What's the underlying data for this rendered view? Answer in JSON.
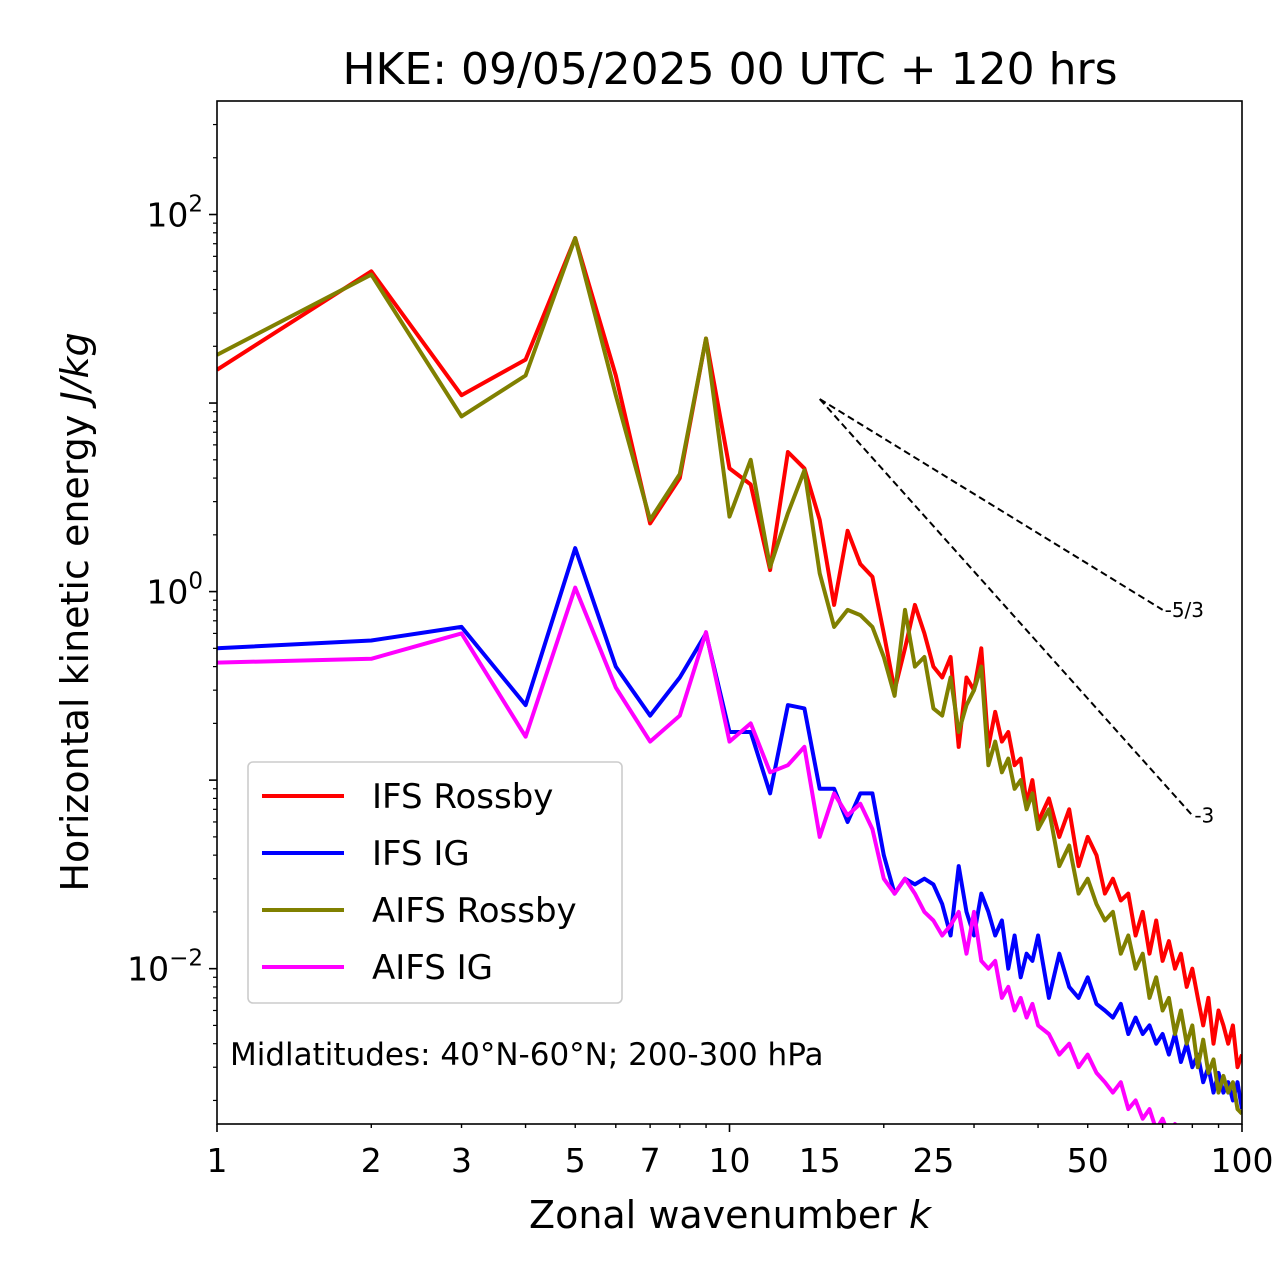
{
  "chart_data": {
    "type": "line",
    "title": "HKE: 09/05/2025 00 UTC + 120 hrs",
    "xlabel": "Zonal wavenumber ",
    "xlabel_italic": "k",
    "ylabel": "Horizontal kinetic energy ",
    "ylabel_italic": "J/kg",
    "xscale": "log",
    "yscale": "log",
    "xlim": [
      1,
      100
    ],
    "ylim": [
      0.0015,
      400
    ],
    "x_ticks": [
      1,
      2,
      3,
      5,
      7,
      10,
      15,
      25,
      50,
      100
    ],
    "x_tick_labels": [
      "1",
      "2",
      "3",
      "5",
      "7",
      "10",
      "15",
      "25",
      "50",
      "100"
    ],
    "y_ticks": [
      {
        "value": 100,
        "base": "10",
        "exp": "2"
      },
      {
        "value": 1,
        "base": "10",
        "exp": "0"
      },
      {
        "value": 0.01,
        "base": "10",
        "exp": "−2"
      }
    ],
    "legend_position": "lower-left",
    "annotation": "Midlatitudes: 40°N-60°N; 200-300 hPa",
    "reference_lines": [
      {
        "label": "-5/3",
        "slope": -1.6667,
        "x": [
          15,
          70
        ],
        "y": [
          10.5,
          0.8
        ]
      },
      {
        "label": "-3",
        "slope": -3,
        "x": [
          15,
          80
        ],
        "y": [
          10.5,
          0.065
        ]
      }
    ],
    "series": [
      {
        "name": "IFS Rossby",
        "color": "#ff0000",
        "x": [
          1,
          2,
          3,
          4,
          5,
          6,
          7,
          8,
          9,
          10,
          11,
          12,
          13,
          14,
          15,
          16,
          17,
          18,
          19,
          20,
          21,
          22,
          23,
          24,
          25,
          26,
          27,
          28,
          29,
          30,
          31,
          32,
          33,
          34,
          35,
          36,
          37,
          38,
          39,
          40,
          42,
          44,
          46,
          48,
          50,
          52,
          54,
          56,
          58,
          60,
          62,
          64,
          66,
          68,
          70,
          72,
          74,
          76,
          78,
          80,
          82,
          84,
          86,
          88,
          90,
          92,
          94,
          96,
          98,
          100
        ],
        "y": [
          15,
          50,
          11,
          17,
          75,
          14,
          2.3,
          4,
          22,
          4.5,
          3.7,
          1.3,
          5.5,
          4.5,
          2.4,
          0.85,
          2.1,
          1.4,
          1.2,
          0.6,
          0.3,
          0.5,
          0.85,
          0.6,
          0.4,
          0.35,
          0.45,
          0.15,
          0.35,
          0.3,
          0.5,
          0.15,
          0.23,
          0.16,
          0.18,
          0.12,
          0.13,
          0.075,
          0.1,
          0.06,
          0.08,
          0.05,
          0.07,
          0.035,
          0.05,
          0.04,
          0.025,
          0.03,
          0.023,
          0.025,
          0.015,
          0.02,
          0.012,
          0.018,
          0.011,
          0.014,
          0.01,
          0.012,
          0.008,
          0.01,
          0.007,
          0.005,
          0.007,
          0.004,
          0.006,
          0.005,
          0.004,
          0.005,
          0.003,
          0.0035
        ]
      },
      {
        "name": "IFS IG",
        "color": "#0000ff",
        "x": [
          1,
          2,
          3,
          4,
          5,
          6,
          7,
          8,
          9,
          10,
          11,
          12,
          13,
          14,
          15,
          16,
          17,
          18,
          19,
          20,
          21,
          22,
          23,
          24,
          25,
          26,
          27,
          28,
          29,
          30,
          31,
          32,
          33,
          34,
          35,
          36,
          37,
          38,
          39,
          40,
          42,
          44,
          46,
          48,
          50,
          52,
          54,
          56,
          58,
          60,
          62,
          64,
          66,
          68,
          70,
          72,
          74,
          76,
          78,
          80,
          82,
          84,
          86,
          88,
          90,
          92,
          94,
          96,
          98,
          100
        ],
        "y": [
          0.5,
          0.55,
          0.65,
          0.25,
          1.7,
          0.4,
          0.22,
          0.35,
          0.6,
          0.18,
          0.18,
          0.085,
          0.25,
          0.24,
          0.09,
          0.09,
          0.06,
          0.085,
          0.085,
          0.04,
          0.025,
          0.03,
          0.028,
          0.03,
          0.028,
          0.022,
          0.015,
          0.035,
          0.02,
          0.015,
          0.025,
          0.02,
          0.015,
          0.018,
          0.01,
          0.015,
          0.009,
          0.012,
          0.011,
          0.015,
          0.007,
          0.012,
          0.008,
          0.007,
          0.009,
          0.0065,
          0.006,
          0.0055,
          0.0065,
          0.0045,
          0.0055,
          0.0045,
          0.005,
          0.004,
          0.0045,
          0.0035,
          0.0045,
          0.0032,
          0.004,
          0.003,
          0.0035,
          0.0025,
          0.003,
          0.0022,
          0.0028,
          0.0022,
          0.0025,
          0.002,
          0.0025,
          0.0018
        ]
      },
      {
        "name": "AIFS Rossby",
        "color": "#808000",
        "x": [
          1,
          2,
          3,
          4,
          5,
          6,
          7,
          8,
          9,
          10,
          11,
          12,
          13,
          14,
          15,
          16,
          17,
          18,
          19,
          20,
          21,
          22,
          23,
          24,
          25,
          26,
          27,
          28,
          29,
          30,
          31,
          32,
          33,
          34,
          35,
          36,
          37,
          38,
          39,
          40,
          42,
          44,
          46,
          48,
          50,
          52,
          54,
          56,
          58,
          60,
          62,
          64,
          66,
          68,
          70,
          72,
          74,
          76,
          78,
          80,
          82,
          84,
          86,
          88,
          90,
          92,
          94,
          96,
          98,
          100
        ],
        "y": [
          18,
          48,
          8.5,
          14,
          75,
          11,
          2.4,
          4.2,
          22,
          2.5,
          5,
          1.35,
          2.6,
          4.4,
          1.25,
          0.65,
          0.8,
          0.75,
          0.65,
          0.45,
          0.28,
          0.8,
          0.4,
          0.45,
          0.24,
          0.22,
          0.35,
          0.18,
          0.25,
          0.3,
          0.4,
          0.12,
          0.16,
          0.11,
          0.13,
          0.09,
          0.1,
          0.07,
          0.085,
          0.055,
          0.07,
          0.035,
          0.045,
          0.025,
          0.03,
          0.022,
          0.018,
          0.02,
          0.012,
          0.015,
          0.01,
          0.012,
          0.007,
          0.009,
          0.006,
          0.007,
          0.0045,
          0.006,
          0.004,
          0.005,
          0.003,
          0.0042,
          0.0028,
          0.0033,
          0.0022,
          0.0027,
          0.0022,
          0.0025,
          0.0018,
          0.0017
        ]
      },
      {
        "name": "AIFS IG",
        "color": "#ff00ff",
        "x": [
          1,
          2,
          3,
          4,
          5,
          6,
          7,
          8,
          9,
          10,
          11,
          12,
          13,
          14,
          15,
          16,
          17,
          18,
          19,
          20,
          21,
          22,
          23,
          24,
          25,
          26,
          27,
          28,
          29,
          30,
          31,
          32,
          33,
          34,
          35,
          36,
          37,
          38,
          39,
          40,
          42,
          44,
          46,
          48,
          50,
          52,
          54,
          56,
          58,
          60,
          62,
          64,
          66,
          68,
          70,
          72,
          74,
          76,
          78
        ],
        "y": [
          0.42,
          0.44,
          0.6,
          0.17,
          1.05,
          0.31,
          0.16,
          0.22,
          0.61,
          0.16,
          0.2,
          0.11,
          0.12,
          0.15,
          0.05,
          0.085,
          0.065,
          0.075,
          0.055,
          0.03,
          0.025,
          0.03,
          0.025,
          0.02,
          0.018,
          0.015,
          0.017,
          0.02,
          0.012,
          0.02,
          0.011,
          0.01,
          0.011,
          0.007,
          0.008,
          0.006,
          0.007,
          0.0055,
          0.0065,
          0.005,
          0.0045,
          0.0035,
          0.004,
          0.003,
          0.0035,
          0.0028,
          0.0025,
          0.0022,
          0.0025,
          0.0018,
          0.002,
          0.0016,
          0.0018,
          0.0014,
          0.0016,
          0.0013,
          0.0015,
          0.0012,
          0.0013
        ]
      }
    ]
  }
}
